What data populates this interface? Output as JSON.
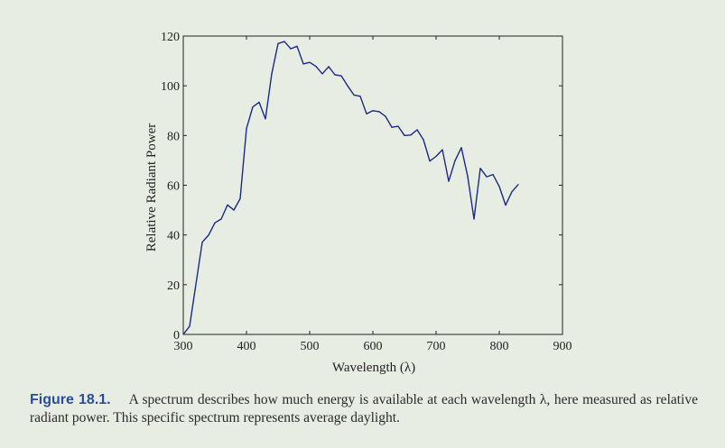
{
  "chart_data": {
    "type": "line",
    "xlabel": "Wavelength (λ)",
    "ylabel": "Relative Radiant Power",
    "xlim": [
      300,
      900
    ],
    "ylim": [
      0,
      120
    ],
    "xticks": [
      300,
      400,
      500,
      600,
      700,
      800,
      900
    ],
    "yticks": [
      0,
      20,
      40,
      60,
      80,
      100,
      120
    ],
    "grid": false,
    "line_color": "#1a2a8a",
    "series": [
      {
        "x": [
          300,
          310,
          320,
          330,
          340,
          350,
          360,
          370,
          380,
          390,
          400,
          410,
          420,
          430,
          440,
          450,
          460,
          470,
          480,
          490,
          500,
          510,
          520,
          530,
          540,
          550,
          560,
          570,
          580,
          590,
          600,
          610,
          620,
          630,
          640,
          650,
          660,
          670,
          680,
          690,
          700,
          710,
          720,
          730,
          740,
          750,
          760,
          770,
          780,
          790,
          800,
          810,
          820,
          830
        ],
        "values": [
          0,
          3.3,
          20.2,
          37.1,
          39.9,
          44.9,
          46.4,
          52.1,
          50.0,
          54.6,
          82.8,
          91.5,
          93.4,
          86.7,
          104.9,
          117.0,
          117.8,
          114.9,
          115.9,
          108.8,
          109.4,
          107.8,
          104.8,
          107.7,
          104.4,
          104.0,
          100.0,
          96.3,
          95.8,
          88.7,
          90.0,
          89.6,
          87.7,
          83.3,
          83.7,
          80.0,
          80.2,
          82.3,
          78.3,
          69.7,
          71.6,
          74.3,
          61.6,
          69.9,
          75.1,
          63.6,
          46.4,
          66.8,
          63.4,
          64.3,
          59.5,
          52.0,
          57.4,
          60.3
        ]
      }
    ]
  },
  "caption": {
    "label": "Figure 18.1.",
    "text": "A spectrum describes how much energy is available at each wavelength λ, here measured as relative radiant power. This specific spectrum represents average daylight."
  }
}
